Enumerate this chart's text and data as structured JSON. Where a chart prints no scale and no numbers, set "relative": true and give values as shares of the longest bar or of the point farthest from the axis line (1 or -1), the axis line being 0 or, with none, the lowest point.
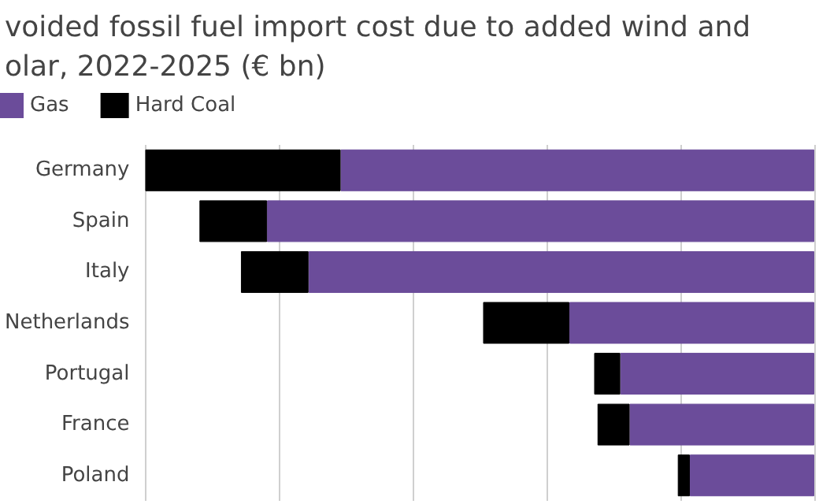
{
  "chart_data": {
    "type": "bar",
    "title": "voided fossil fuel import cost due to added wind and\nolar, 2022-2025 (€ bn)",
    "orientation": "horizontal",
    "stacked": true,
    "relative": true,
    "grid": "x",
    "legend": "top left",
    "categories": [
      "Germany",
      "Spain",
      "Italy",
      "Netherlands",
      "Portugal",
      "France",
      "Poland"
    ],
    "series": [
      {
        "name": "Gas",
        "color": "#6b4c9a",
        "values": [
          0.708,
          0.818,
          0.756,
          0.366,
          0.29,
          0.276,
          0.186
        ]
      },
      {
        "name": "Hard Coal",
        "color": "#000000",
        "values": [
          0.292,
          0.101,
          0.101,
          0.129,
          0.039,
          0.048,
          0.018
        ]
      }
    ]
  }
}
